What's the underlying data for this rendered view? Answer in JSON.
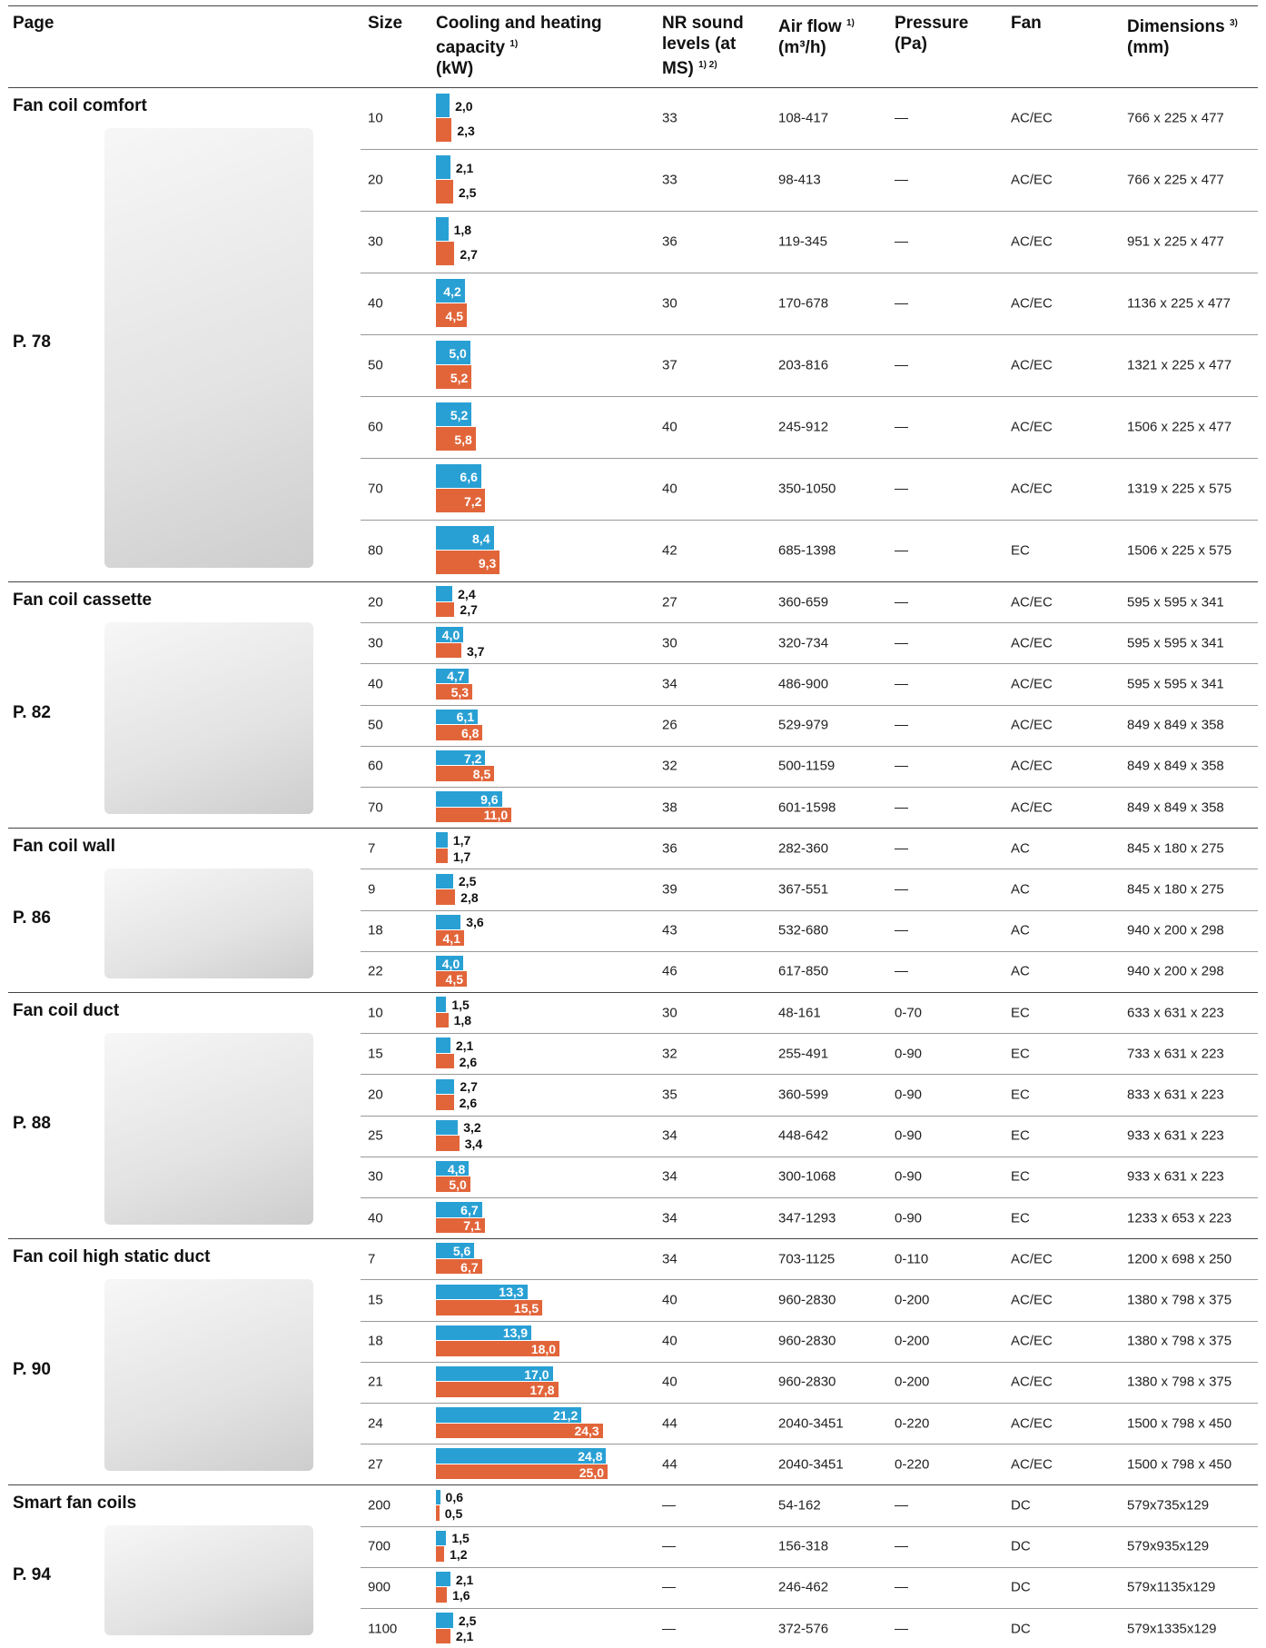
{
  "header": [
    {
      "label": "Page"
    },
    {
      "label": "Size"
    },
    {
      "label": "Cooling and heating capacity",
      "note": "1)",
      "unit": "(kW)"
    },
    {
      "label": "NR sound levels (at MS)",
      "note": "1) 2)"
    },
    {
      "label": "Air flow",
      "note": "1)",
      "unit": "(m³/h)"
    },
    {
      "label": "Pressure",
      "unit": "(Pa)"
    },
    {
      "label": "Fan"
    },
    {
      "label": "Dimensions",
      "note": "3)",
      "unit": "(mm)"
    }
  ],
  "groups": [
    {
      "title": "Fan coil comfort",
      "page": "P. 78",
      "rows": [
        {
          "size": 10,
          "cooling": 2.0,
          "cooling_label": "2,0",
          "heating": 2.3,
          "heating_label": "2,3",
          "nr": 33,
          "airflow": "108-417",
          "pressure": "—",
          "fan": "AC/EC",
          "dimensions": "766 x 225 x 477"
        },
        {
          "size": 20,
          "cooling": 2.1,
          "cooling_label": "2,1",
          "heating": 2.5,
          "heating_label": "2,5",
          "nr": 33,
          "airflow": "98-413",
          "pressure": "—",
          "fan": "AC/EC",
          "dimensions": "766 x 225 x 477"
        },
        {
          "size": 30,
          "cooling": 1.8,
          "cooling_label": "1,8",
          "heating": 2.7,
          "heating_label": "2,7",
          "nr": 36,
          "airflow": "119-345",
          "pressure": "—",
          "fan": "AC/EC",
          "dimensions": "951 x 225 x 477"
        },
        {
          "size": 40,
          "cooling": 4.2,
          "cooling_label": "4,2",
          "heating": 4.5,
          "heating_label": "4,5",
          "nr": 30,
          "airflow": "170-678",
          "pressure": "—",
          "fan": "AC/EC",
          "dimensions": "1136 x 225 x 477"
        },
        {
          "size": 50,
          "cooling": 5.0,
          "cooling_label": "5,0",
          "heating": 5.2,
          "heating_label": "5,2",
          "nr": 37,
          "airflow": "203-816",
          "pressure": "—",
          "fan": "AC/EC",
          "dimensions": "1321 x 225 x 477"
        },
        {
          "size": 60,
          "cooling": 5.2,
          "cooling_label": "5,2",
          "heating": 5.8,
          "heating_label": "5,8",
          "nr": 40,
          "airflow": "245-912",
          "pressure": "—",
          "fan": "AC/EC",
          "dimensions": "1506 x 225 x 477"
        },
        {
          "size": 70,
          "cooling": 6.6,
          "cooling_label": "6,6",
          "heating": 7.2,
          "heating_label": "7,2",
          "nr": 40,
          "airflow": "350-1050",
          "pressure": "—",
          "fan": "AC/EC",
          "dimensions": "1319 x 225 x 575"
        },
        {
          "size": 80,
          "cooling": 8.4,
          "cooling_label": "8,4",
          "heating": 9.3,
          "heating_label": "9,3",
          "nr": 42,
          "airflow": "685-1398",
          "pressure": "—",
          "fan": "EC",
          "dimensions": "1506 x 225 x 575"
        }
      ]
    },
    {
      "title": "Fan coil cassette",
      "page": "P. 82",
      "rows": [
        {
          "size": 20,
          "cooling": 2.4,
          "cooling_label": "2,4",
          "heating": 2.7,
          "heating_label": "2,7",
          "nr": 27,
          "airflow": "360-659",
          "pressure": "—",
          "fan": "AC/EC",
          "dimensions": "595 x 595 x 341"
        },
        {
          "size": 30,
          "cooling": 4.0,
          "cooling_label": "4,0",
          "heating": 3.7,
          "heating_label": "3,7",
          "nr": 30,
          "airflow": "320-734",
          "pressure": "—",
          "fan": "AC/EC",
          "dimensions": "595 x 595 x 341"
        },
        {
          "size": 40,
          "cooling": 4.7,
          "cooling_label": "4,7",
          "heating": 5.3,
          "heating_label": "5,3",
          "nr": 34,
          "airflow": "486-900",
          "pressure": "—",
          "fan": "AC/EC",
          "dimensions": "595 x 595 x 341"
        },
        {
          "size": 50,
          "cooling": 6.1,
          "cooling_label": "6,1",
          "heating": 6.8,
          "heating_label": "6,8",
          "nr": 26,
          "airflow": "529-979",
          "pressure": "—",
          "fan": "AC/EC",
          "dimensions": "849 x 849 x 358"
        },
        {
          "size": 60,
          "cooling": 7.2,
          "cooling_label": "7,2",
          "heating": 8.5,
          "heating_label": "8,5",
          "nr": 32,
          "airflow": "500-1159",
          "pressure": "—",
          "fan": "AC/EC",
          "dimensions": "849 x 849 x 358"
        },
        {
          "size": 70,
          "cooling": 9.6,
          "cooling_label": "9,6",
          "heating": 11.0,
          "heating_label": "11,0",
          "nr": 38,
          "airflow": "601-1598",
          "pressure": "—",
          "fan": "AC/EC",
          "dimensions": "849 x 849 x 358"
        }
      ]
    },
    {
      "title": "Fan coil wall",
      "page": "P. 86",
      "rows": [
        {
          "size": 7,
          "cooling": 1.7,
          "cooling_label": "1,7",
          "heating": 1.7,
          "heating_label": "1,7",
          "nr": 36,
          "airflow": "282-360",
          "pressure": "—",
          "fan": "AC",
          "dimensions": "845 x 180 x 275"
        },
        {
          "size": 9,
          "cooling": 2.5,
          "cooling_label": "2,5",
          "heating": 2.8,
          "heating_label": "2,8",
          "nr": 39,
          "airflow": "367-551",
          "pressure": "—",
          "fan": "AC",
          "dimensions": "845 x 180 x 275"
        },
        {
          "size": 18,
          "cooling": 3.6,
          "cooling_label": "3,6",
          "heating": 4.1,
          "heating_label": "4,1",
          "nr": 43,
          "airflow": "532-680",
          "pressure": "—",
          "fan": "AC",
          "dimensions": "940 x 200 x 298"
        },
        {
          "size": 22,
          "cooling": 4.0,
          "cooling_label": "4,0",
          "heating": 4.5,
          "heating_label": "4,5",
          "nr": 46,
          "airflow": "617-850",
          "pressure": "—",
          "fan": "AC",
          "dimensions": "940 x 200 x 298"
        }
      ]
    },
    {
      "title": "Fan coil duct",
      "page": "P. 88",
      "rows": [
        {
          "size": 10,
          "cooling": 1.5,
          "cooling_label": "1,5",
          "heating": 1.8,
          "heating_label": "1,8",
          "nr": 30,
          "airflow": "48-161",
          "pressure": "0-70",
          "fan": "EC",
          "dimensions": "633 x 631 x 223"
        },
        {
          "size": 15,
          "cooling": 2.1,
          "cooling_label": "2,1",
          "heating": 2.6,
          "heating_label": "2,6",
          "nr": 32,
          "airflow": "255-491",
          "pressure": "0-90",
          "fan": "EC",
          "dimensions": "733 x 631 x 223"
        },
        {
          "size": 20,
          "cooling": 2.7,
          "cooling_label": "2,7",
          "heating": 2.6,
          "heating_label": "2,6",
          "nr": 35,
          "airflow": "360-599",
          "pressure": "0-90",
          "fan": "EC",
          "dimensions": "833 x 631 x 223"
        },
        {
          "size": 25,
          "cooling": 3.2,
          "cooling_label": "3,2",
          "heating": 3.4,
          "heating_label": "3,4",
          "nr": 34,
          "airflow": "448-642",
          "pressure": "0-90",
          "fan": "EC",
          "dimensions": "933 x 631 x 223"
        },
        {
          "size": 30,
          "cooling": 4.8,
          "cooling_label": "4,8",
          "heating": 5.0,
          "heating_label": "5,0",
          "nr": 34,
          "airflow": "300-1068",
          "pressure": "0-90",
          "fan": "EC",
          "dimensions": "933 x 631 x 223"
        },
        {
          "size": 40,
          "cooling": 6.7,
          "cooling_label": "6,7",
          "heating": 7.1,
          "heating_label": "7,1",
          "nr": 34,
          "airflow": "347-1293",
          "pressure": "0-90",
          "fan": "EC",
          "dimensions": "1233 x 653 x 223"
        }
      ]
    },
    {
      "title": "Fan coil high static duct",
      "page": "P. 90",
      "rows": [
        {
          "size": 7,
          "cooling": 5.6,
          "cooling_label": "5,6",
          "heating": 6.7,
          "heating_label": "6,7",
          "nr": 34,
          "airflow": "703-1125",
          "pressure": "0-110",
          "fan": "AC/EC",
          "dimensions": "1200 x 698 x 250"
        },
        {
          "size": 15,
          "cooling": 13.3,
          "cooling_label": "13,3",
          "heating": 15.5,
          "heating_label": "15,5",
          "nr": 40,
          "airflow": "960-2830",
          "pressure": "0-200",
          "fan": "AC/EC",
          "dimensions": "1380 x 798 x 375"
        },
        {
          "size": 18,
          "cooling": 13.9,
          "cooling_label": "13,9",
          "heating": 18.0,
          "heating_label": "18,0",
          "nr": 40,
          "airflow": "960-2830",
          "pressure": "0-200",
          "fan": "AC/EC",
          "dimensions": "1380 x 798 x 375"
        },
        {
          "size": 21,
          "cooling": 17.0,
          "cooling_label": "17,0",
          "heating": 17.8,
          "heating_label": "17,8",
          "nr": 40,
          "airflow": "960-2830",
          "pressure": "0-200",
          "fan": "AC/EC",
          "dimensions": "1380 x 798 x 375"
        },
        {
          "size": 24,
          "cooling": 21.2,
          "cooling_label": "21,2",
          "heating": 24.3,
          "heating_label": "24,3",
          "nr": 44,
          "airflow": "2040-3451",
          "pressure": "0-220",
          "fan": "AC/EC",
          "dimensions": "1500 x 798 x 450"
        },
        {
          "size": 27,
          "cooling": 24.8,
          "cooling_label": "24,8",
          "heating": 25.0,
          "heating_label": "25,0",
          "nr": 44,
          "airflow": "2040-3451",
          "pressure": "0-220",
          "fan": "AC/EC",
          "dimensions": "1500 x 798 x 450"
        }
      ]
    },
    {
      "title": "Smart fan coils",
      "page": "P. 94",
      "rows": [
        {
          "size": 200,
          "cooling": 0.6,
          "cooling_label": "0,6",
          "heating": 0.5,
          "heating_label": "0,5",
          "nr": "—",
          "airflow": "54-162",
          "pressure": "—",
          "fan": "DC",
          "dimensions": "579x735x129"
        },
        {
          "size": 700,
          "cooling": 1.5,
          "cooling_label": "1,5",
          "heating": 1.2,
          "heating_label": "1,2",
          "nr": "—",
          "airflow": "156-318",
          "pressure": "—",
          "fan": "DC",
          "dimensions": "579x935x129"
        },
        {
          "size": 900,
          "cooling": 2.1,
          "cooling_label": "2,1",
          "heating": 1.6,
          "heating_label": "1,6",
          "nr": "—",
          "airflow": "246-462",
          "pressure": "—",
          "fan": "DC",
          "dimensions": "579x1135x129"
        },
        {
          "size": 1100,
          "cooling": 2.5,
          "cooling_label": "2,5",
          "heating": 2.1,
          "heating_label": "2,1",
          "nr": "—",
          "airflow": "372-576",
          "pressure": "—",
          "fan": "DC",
          "dimensions": "579x1335x129"
        }
      ]
    }
  ]
}
